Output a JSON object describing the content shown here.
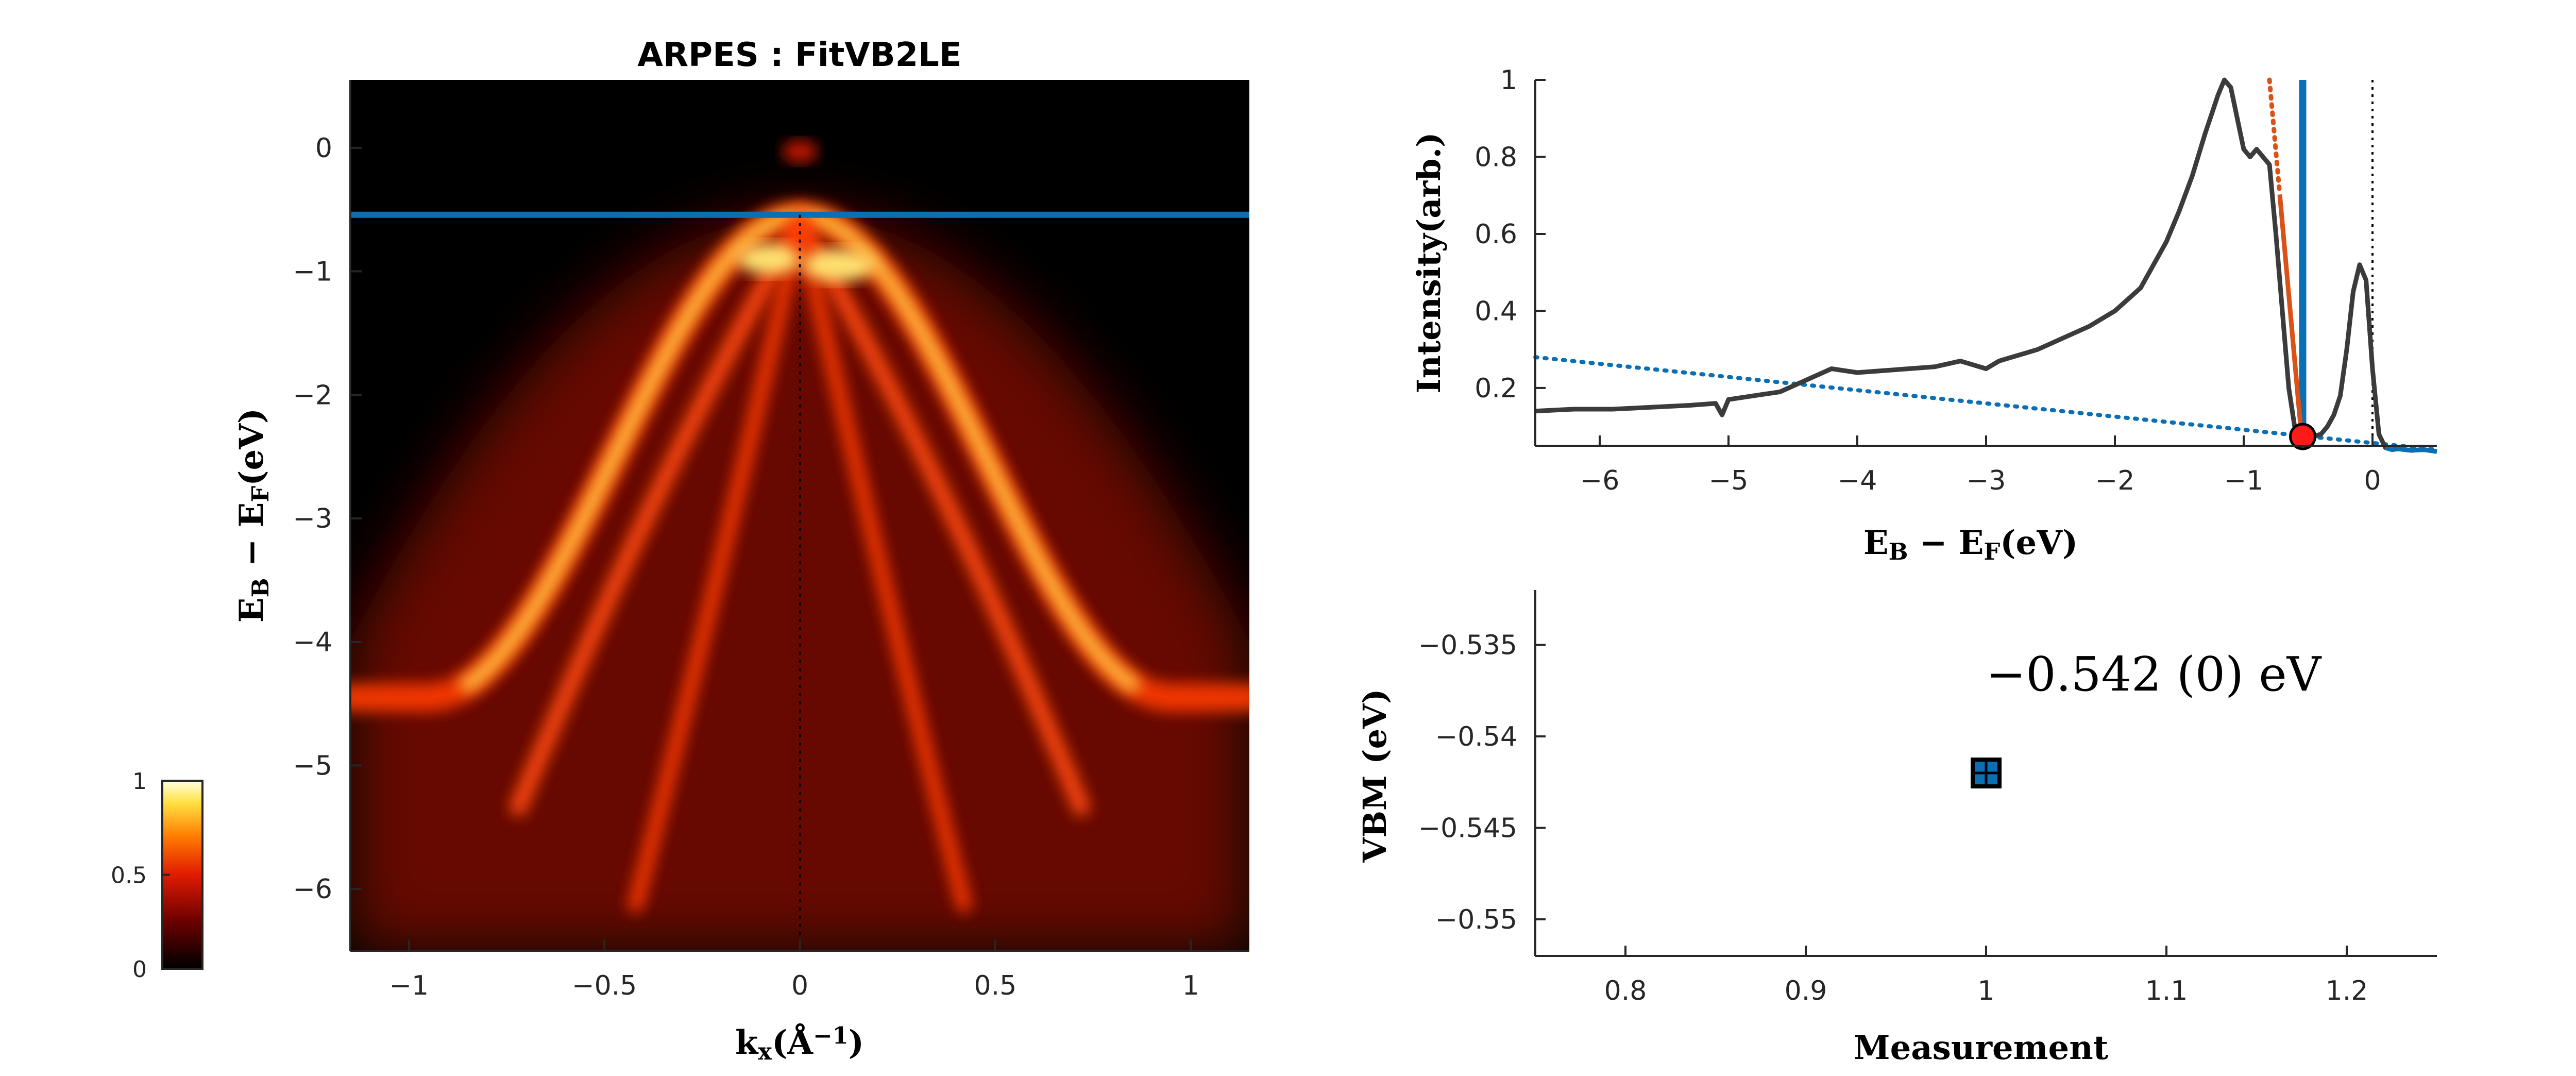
{
  "colors": {
    "vbm_line": "#0b6fb5",
    "leading_edge_fit": "#d95319",
    "background_fit": "#0b6fb5",
    "edc_curve": "#3b3b3b",
    "vbm_marker": "#ff1a1a",
    "colormap": [
      "#000000",
      "#6a0000",
      "#e01b00",
      "#ff7a00",
      "#ffe040",
      "#ffffe0"
    ]
  },
  "chart_data": [
    {
      "type": "heatmap",
      "name": "arpes-map",
      "title": "ARPES : FitVB2LE",
      "xlabel": "k_x(Å^-1)",
      "ylabel": "E_B - E_F(eV)",
      "xlim": [
        -1.15,
        1.15
      ],
      "ylim": [
        -6.5,
        0.55
      ],
      "xticks": [
        -1,
        -0.5,
        0,
        0.5,
        1
      ],
      "yticks": [
        0,
        -1,
        -2,
        -3,
        -4,
        -5,
        -6
      ],
      "vbm_line_energy": -0.542,
      "k_zero_line": 0,
      "colorbar": {
        "range": [
          0,
          1
        ],
        "ticks": [
          0,
          0.5,
          1
        ]
      }
    },
    {
      "type": "line",
      "name": "edc",
      "xlabel": "E_B - E_F(eV)",
      "ylabel": "Intensity(arb.)",
      "xlim": [
        -6.5,
        0.5
      ],
      "ylim": [
        0.05,
        1.0
      ],
      "xticks": [
        -6,
        -5,
        -4,
        -3,
        -2,
        -1,
        0
      ],
      "yticks": [
        0.2,
        0.4,
        0.6,
        0.8,
        1
      ],
      "series": [
        {
          "role": "edc",
          "x": [
            -6.5,
            -6.2,
            -5.9,
            -5.6,
            -5.3,
            -5.1,
            -5.05,
            -5.0,
            -4.8,
            -4.6,
            -4.4,
            -4.2,
            -4.0,
            -3.8,
            -3.6,
            -3.4,
            -3.2,
            -3.0,
            -2.9,
            -2.8,
            -2.6,
            -2.4,
            -2.2,
            -2.0,
            -1.8,
            -1.6,
            -1.5,
            -1.4,
            -1.3,
            -1.2,
            -1.15,
            -1.1,
            -1.05,
            -1.0,
            -0.95,
            -0.9,
            -0.85,
            -0.8,
            -0.75,
            -0.7,
            -0.65,
            -0.6,
            -0.55,
            -0.5,
            -0.45,
            -0.4,
            -0.35,
            -0.3,
            -0.25,
            -0.2,
            -0.15,
            -0.1,
            -0.05,
            0.0,
            0.05,
            0.1,
            0.15,
            0.2,
            0.25,
            0.3,
            0.4,
            0.5
          ],
          "y": [
            0.14,
            0.145,
            0.145,
            0.15,
            0.155,
            0.16,
            0.13,
            0.17,
            0.18,
            0.19,
            0.22,
            0.25,
            0.24,
            0.245,
            0.25,
            0.255,
            0.27,
            0.25,
            0.27,
            0.28,
            0.3,
            0.33,
            0.36,
            0.4,
            0.46,
            0.58,
            0.66,
            0.75,
            0.86,
            0.96,
            1.0,
            0.98,
            0.9,
            0.82,
            0.8,
            0.82,
            0.8,
            0.78,
            0.6,
            0.4,
            0.2,
            0.09,
            0.07,
            0.08,
            0.075,
            0.08,
            0.1,
            0.13,
            0.18,
            0.3,
            0.45,
            0.52,
            0.48,
            0.25,
            0.08,
            0.045,
            0.04,
            0.042,
            0.04,
            0.038,
            0.04,
            0.035
          ]
        },
        {
          "role": "leading-edge-fit",
          "x": [
            -0.8,
            -0.55
          ],
          "y": [
            1.0,
            0.07
          ]
        },
        {
          "role": "background-fit",
          "x": [
            -6.5,
            0.5
          ],
          "y": [
            0.28,
            0.04
          ]
        }
      ],
      "vbm_line_energy": -0.542,
      "fermi_line_energy": 0,
      "vbm_marker": {
        "x": -0.542,
        "y": 0.074
      }
    },
    {
      "type": "scatter",
      "name": "vbm-vs-measurement",
      "xlabel": "Measurement",
      "ylabel": "VBM (eV)",
      "xlim": [
        0.75,
        1.25
      ],
      "ylim": [
        -0.552,
        -0.532
      ],
      "xticks": [
        0.8,
        0.9,
        1,
        1.1,
        1.2
      ],
      "yticks": [
        -0.535,
        -0.54,
        -0.545,
        -0.55
      ],
      "points": [
        {
          "x": 1,
          "y": -0.542
        }
      ],
      "annotation": "-0.542 (0) eV"
    }
  ]
}
